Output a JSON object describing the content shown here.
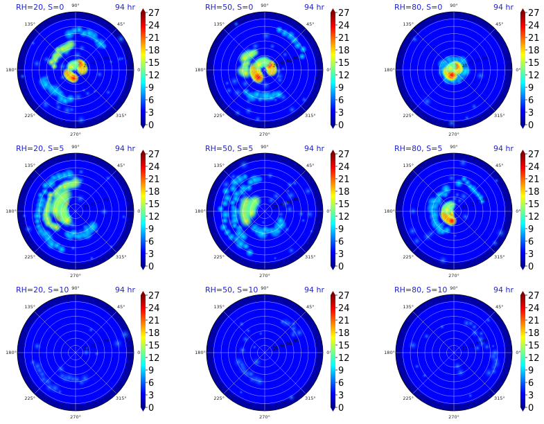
{
  "chart_data": {
    "type": "heatmap",
    "layout": "3x3 grid of polar plots",
    "colormap": "jet",
    "colorbar": {
      "min": 0,
      "max": 27,
      "ticks": [
        0,
        3,
        6,
        9,
        12,
        15,
        18,
        21,
        24,
        27
      ],
      "extend": "both"
    },
    "angle_ticks": [
      "90°",
      "45°",
      "0°",
      "315°",
      "270°",
      "225°",
      "180°",
      "135°"
    ],
    "radial_tick_labels": [
      "20",
      "40",
      "60",
      "80",
      "100",
      "120",
      "140",
      "160"
    ],
    "background_colors": {
      "low": "#00008f",
      "mid": "#0000ff",
      "frame": "#000080"
    },
    "panels": [
      {
        "title_left": "RH=20, S=0",
        "title_right": "94 hr",
        "rh": 20,
        "shear": 0,
        "intensity": "strong",
        "structure": "compact eye with spiral bands"
      },
      {
        "title_left": "RH=50, S=0",
        "title_right": "94 hr",
        "rh": 50,
        "shear": 0,
        "intensity": "strong",
        "structure": "eyewall with outer bands to northeast"
      },
      {
        "title_left": "RH=80, S=0",
        "title_right": "94 hr",
        "rh": 80,
        "shear": 0,
        "intensity": "strongest",
        "structure": "small intense eyewall"
      },
      {
        "title_left": "RH=20, S=5",
        "title_right": "94 hr",
        "rh": 20,
        "shear": 5,
        "intensity": "moderate",
        "structure": "asymmetric, rain to west"
      },
      {
        "title_left": "RH=50, S=5",
        "title_right": "94 hr",
        "rh": 50,
        "shear": 5,
        "intensity": "moderate",
        "structure": "asymmetric, broad rain to west"
      },
      {
        "title_left": "RH=80, S=5",
        "title_right": "94 hr",
        "rh": 80,
        "shear": 5,
        "intensity": "strong",
        "structure": "compact asymmetric eyewall"
      },
      {
        "title_left": "RH=20, S=10",
        "title_right": "94 hr",
        "rh": 20,
        "shear": 10,
        "intensity": "weak",
        "structure": "diffuse, weak south band"
      },
      {
        "title_left": "RH=50, S=10",
        "title_right": "94 hr",
        "rh": 50,
        "shear": 10,
        "intensity": "weak",
        "structure": "weak band northeast"
      },
      {
        "title_left": "RH=80, S=10",
        "title_right": "94 hr",
        "rh": 80,
        "shear": 10,
        "intensity": "weak",
        "structure": "weak scattered bands"
      }
    ]
  }
}
